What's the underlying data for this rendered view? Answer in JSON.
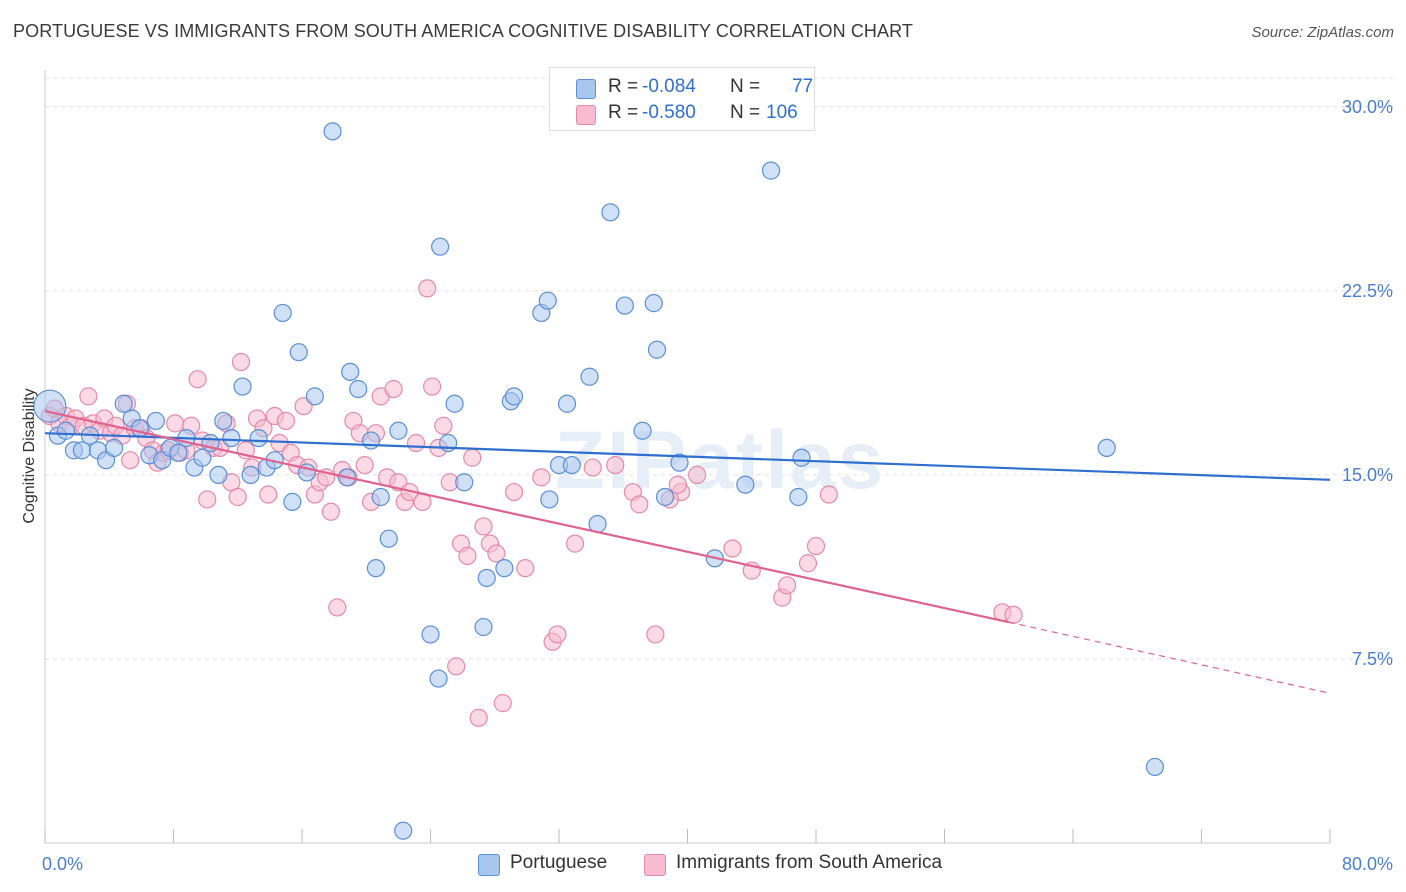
{
  "title": "PORTUGUESE VS IMMIGRANTS FROM SOUTH AMERICA COGNITIVE DISABILITY CORRELATION CHART",
  "source": "Source: ZipAtlas.com",
  "watermark": "ZIPatlas",
  "legend": {
    "series1": {
      "r_label": "R =",
      "r_value": "-0.084",
      "n_label": "N =",
      "n_value": "77"
    },
    "series2": {
      "r_label": "R =",
      "r_value": "-0.580",
      "n_label": "N =",
      "n_value": "106"
    }
  },
  "colors": {
    "blue_fill": "#a9c6ee",
    "blue_stroke": "#5b8fd6",
    "blue_line": "#2f6fcf",
    "pink_fill": "#f7bcd0",
    "pink_stroke": "#e58aa8",
    "pink_line": "#e0628f",
    "grid": "#dddddd",
    "tick_text": "#4a7fd0"
  },
  "chart_data": {
    "type": "scatter",
    "title": "PORTUGUESE VS IMMIGRANTS FROM SOUTH AMERICA COGNITIVE DISABILITY CORRELATION CHART",
    "xlabel": "",
    "ylabel": "Cognitive Disability",
    "xlim": [
      0,
      80
    ],
    "ylim": [
      0,
      31.5
    ],
    "x_tick_labels": [
      "0.0%",
      "80.0%"
    ],
    "y_ticks": [
      7.5,
      15.0,
      22.5,
      30.0
    ],
    "y_tick_labels": [
      "7.5%",
      "15.0%",
      "22.5%",
      "30.0%"
    ],
    "series": [
      {
        "name": "Portuguese",
        "trend": {
          "x0": 0,
          "y0": 16.7,
          "x1": 80,
          "y1": 14.8
        },
        "points": [
          [
            0.3,
            17.8
          ],
          [
            0.8,
            16.6
          ],
          [
            1.3,
            16.8
          ],
          [
            1.8,
            16.0
          ],
          [
            2.3,
            16.0
          ],
          [
            2.8,
            16.6
          ],
          [
            3.3,
            16.0
          ],
          [
            3.8,
            15.6
          ],
          [
            4.3,
            16.1
          ],
          [
            4.9,
            17.9
          ],
          [
            5.4,
            17.3
          ],
          [
            5.9,
            16.9
          ],
          [
            6.5,
            15.8
          ],
          [
            6.9,
            17.2
          ],
          [
            7.3,
            15.6
          ],
          [
            7.8,
            16.1
          ],
          [
            8.3,
            15.9
          ],
          [
            8.8,
            16.5
          ],
          [
            9.3,
            15.3
          ],
          [
            9.8,
            15.7
          ],
          [
            10.3,
            16.3
          ],
          [
            10.8,
            15.0
          ],
          [
            11.1,
            17.2
          ],
          [
            11.6,
            16.5
          ],
          [
            12.3,
            18.6
          ],
          [
            12.8,
            15.0
          ],
          [
            13.3,
            16.5
          ],
          [
            13.8,
            15.3
          ],
          [
            14.3,
            15.6
          ],
          [
            14.8,
            21.6
          ],
          [
            15.4,
            13.9
          ],
          [
            15.8,
            20.0
          ],
          [
            16.3,
            15.1
          ],
          [
            16.8,
            18.2
          ],
          [
            17.9,
            29.0
          ],
          [
            18.8,
            14.9
          ],
          [
            19.0,
            19.2
          ],
          [
            19.5,
            18.5
          ],
          [
            20.3,
            16.4
          ],
          [
            20.6,
            11.2
          ],
          [
            20.9,
            14.1
          ],
          [
            21.4,
            12.4
          ],
          [
            22.0,
            16.8
          ],
          [
            22.3,
            0.5
          ],
          [
            24.0,
            8.5
          ],
          [
            24.5,
            6.7
          ],
          [
            24.6,
            24.3
          ],
          [
            25.1,
            16.3
          ],
          [
            25.5,
            17.9
          ],
          [
            26.1,
            14.7
          ],
          [
            27.3,
            8.8
          ],
          [
            27.5,
            10.8
          ],
          [
            28.6,
            11.2
          ],
          [
            29.0,
            18.0
          ],
          [
            29.2,
            18.2
          ],
          [
            30.9,
            21.6
          ],
          [
            31.3,
            22.1
          ],
          [
            31.4,
            14.0
          ],
          [
            32.0,
            15.4
          ],
          [
            32.5,
            17.9
          ],
          [
            32.8,
            15.4
          ],
          [
            33.9,
            19.0
          ],
          [
            34.4,
            13.0
          ],
          [
            35.2,
            25.7
          ],
          [
            36.1,
            21.9
          ],
          [
            37.2,
            16.8
          ],
          [
            37.9,
            22.0
          ],
          [
            38.1,
            20.1
          ],
          [
            38.6,
            14.1
          ],
          [
            39.5,
            15.5
          ],
          [
            41.7,
            11.6
          ],
          [
            43.6,
            14.6
          ],
          [
            45.2,
            27.4
          ],
          [
            46.9,
            14.1
          ],
          [
            47.1,
            15.7
          ],
          [
            66.1,
            16.1
          ],
          [
            69.1,
            3.1
          ]
        ]
      },
      {
        "name": "Immigrants from South America",
        "trend": {
          "x0": 0,
          "y0": 17.6,
          "x1": 60,
          "y1": 9.0
        },
        "trend_dashed": {
          "x0": 60,
          "y0": 9.0,
          "x1": 80,
          "y1": 6.1
        },
        "points": [
          [
            0.3,
            17.4
          ],
          [
            0.6,
            17.7
          ],
          [
            0.9,
            17.1
          ],
          [
            1.3,
            17.4
          ],
          [
            1.6,
            17.0
          ],
          [
            1.9,
            17.3
          ],
          [
            2.4,
            17.0
          ],
          [
            2.7,
            18.2
          ],
          [
            3.0,
            17.1
          ],
          [
            3.4,
            16.8
          ],
          [
            3.7,
            17.3
          ],
          [
            4.1,
            16.7
          ],
          [
            4.4,
            17.0
          ],
          [
            4.8,
            16.6
          ],
          [
            5.1,
            17.9
          ],
          [
            5.3,
            15.6
          ],
          [
            5.6,
            16.9
          ],
          [
            6.0,
            16.9
          ],
          [
            6.3,
            16.5
          ],
          [
            6.7,
            16.0
          ],
          [
            7.0,
            15.5
          ],
          [
            7.4,
            15.9
          ],
          [
            7.7,
            16.0
          ],
          [
            8.1,
            17.1
          ],
          [
            8.4,
            15.9
          ],
          [
            8.8,
            16.0
          ],
          [
            9.1,
            17.0
          ],
          [
            9.5,
            18.9
          ],
          [
            9.8,
            16.4
          ],
          [
            10.1,
            14.0
          ],
          [
            10.5,
            16.1
          ],
          [
            10.9,
            16.1
          ],
          [
            11.3,
            17.1
          ],
          [
            11.6,
            14.7
          ],
          [
            12.0,
            14.1
          ],
          [
            12.2,
            19.6
          ],
          [
            12.5,
            16.0
          ],
          [
            12.9,
            15.3
          ],
          [
            13.2,
            17.3
          ],
          [
            13.6,
            16.9
          ],
          [
            13.9,
            14.2
          ],
          [
            14.3,
            17.4
          ],
          [
            14.6,
            16.3
          ],
          [
            15.0,
            17.2
          ],
          [
            15.3,
            15.9
          ],
          [
            15.7,
            15.4
          ],
          [
            16.1,
            17.8
          ],
          [
            16.4,
            15.3
          ],
          [
            16.8,
            14.2
          ],
          [
            17.1,
            14.7
          ],
          [
            17.5,
            14.9
          ],
          [
            17.8,
            13.5
          ],
          [
            18.2,
            9.6
          ],
          [
            18.5,
            15.2
          ],
          [
            18.9,
            14.9
          ],
          [
            19.2,
            17.2
          ],
          [
            19.6,
            16.7
          ],
          [
            19.9,
            15.4
          ],
          [
            20.3,
            13.9
          ],
          [
            20.6,
            16.7
          ],
          [
            20.9,
            18.2
          ],
          [
            21.3,
            14.9
          ],
          [
            21.7,
            18.5
          ],
          [
            22.0,
            14.7
          ],
          [
            22.4,
            13.9
          ],
          [
            22.7,
            14.3
          ],
          [
            23.1,
            16.3
          ],
          [
            23.5,
            13.9
          ],
          [
            23.8,
            22.6
          ],
          [
            24.1,
            18.6
          ],
          [
            24.5,
            16.1
          ],
          [
            24.8,
            17.0
          ],
          [
            25.2,
            14.7
          ],
          [
            25.6,
            7.2
          ],
          [
            25.9,
            12.2
          ],
          [
            26.3,
            11.7
          ],
          [
            26.6,
            15.7
          ],
          [
            27.0,
            5.1
          ],
          [
            27.3,
            12.9
          ],
          [
            27.7,
            12.2
          ],
          [
            28.1,
            11.8
          ],
          [
            28.5,
            5.7
          ],
          [
            29.2,
            14.3
          ],
          [
            29.9,
            11.2
          ],
          [
            30.9,
            14.9
          ],
          [
            31.6,
            8.2
          ],
          [
            31.9,
            8.5
          ],
          [
            33.0,
            12.2
          ],
          [
            34.1,
            15.3
          ],
          [
            38.0,
            8.5
          ],
          [
            39.6,
            14.3
          ],
          [
            40.6,
            15.0
          ],
          [
            47.5,
            11.4
          ],
          [
            48.0,
            12.1
          ],
          [
            59.6,
            9.4
          ],
          [
            60.3,
            9.3
          ],
          [
            35.5,
            15.4
          ],
          [
            36.6,
            14.3
          ],
          [
            37.0,
            13.8
          ],
          [
            38.9,
            14.0
          ],
          [
            39.4,
            14.6
          ],
          [
            42.8,
            12.0
          ],
          [
            44.0,
            11.1
          ],
          [
            45.9,
            10.0
          ],
          [
            46.2,
            10.5
          ],
          [
            48.8,
            14.2
          ]
        ]
      }
    ]
  },
  "bottom_legend": {
    "items": [
      {
        "label": "Portuguese"
      },
      {
        "label": "Immigrants from South America"
      }
    ]
  }
}
